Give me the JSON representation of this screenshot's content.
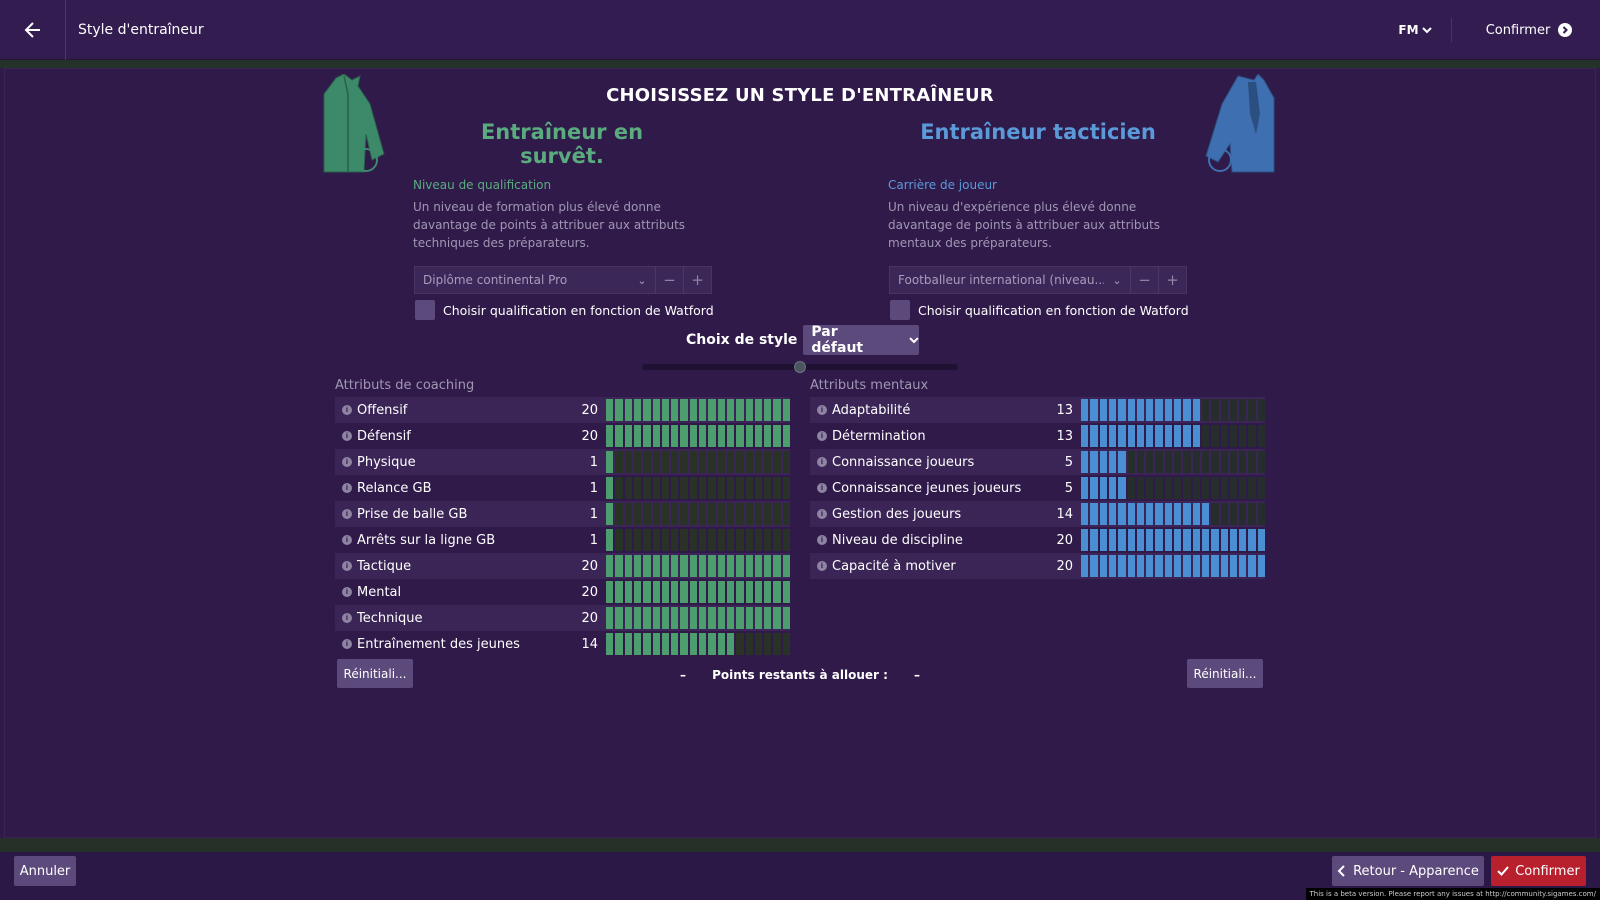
{
  "topbar": {
    "title": "Style d'entraîneur",
    "fm_label": "FM",
    "confirm_label": "Confirmer"
  },
  "heading": "CHOISISSEZ UN STYLE D'ENTRAÎNEUR",
  "left": {
    "style_title": "Entraîneur en survêt.",
    "sub_label": "Niveau de qualification",
    "description": "Un niveau de formation plus élevé donne davantage de points à attribuer aux attributs techniques des préparateurs.",
    "dropdown_value": "Diplôme continental Pro",
    "checkbox_label": "Choisir qualification en fonction de Watford",
    "section_title": "Attributs de coaching",
    "attributes": [
      {
        "name": "Offensif",
        "value": 20
      },
      {
        "name": "Défensif",
        "value": 20
      },
      {
        "name": "Physique",
        "value": 1
      },
      {
        "name": "Relance GB",
        "value": 1
      },
      {
        "name": "Prise de balle GB",
        "value": 1
      },
      {
        "name": "Arrêts sur la ligne GB",
        "value": 1
      },
      {
        "name": "Tactique",
        "value": 20
      },
      {
        "name": "Mental",
        "value": 20
      },
      {
        "name": "Technique",
        "value": 20
      },
      {
        "name": "Entraînement des jeunes",
        "value": 14
      }
    ],
    "reset_label": "Réinitiali..."
  },
  "right": {
    "style_title": "Entraîneur tacticien",
    "sub_label": "Carrière de joueur",
    "description": "Un niveau d'expérience plus élevé donne davantage de points à attribuer aux attributs mentaux des préparateurs.",
    "dropdown_value": "Footballeur international (niveau...",
    "checkbox_label": "Choisir qualification en fonction de Watford",
    "section_title": "Attributs mentaux",
    "attributes": [
      {
        "name": "Adaptabilité",
        "value": 13
      },
      {
        "name": "Détermination",
        "value": 13
      },
      {
        "name": "Connaissance joueurs",
        "value": 5
      },
      {
        "name": "Connaissance jeunes joueurs",
        "value": 5
      },
      {
        "name": "Gestion des joueurs",
        "value": 14
      },
      {
        "name": "Niveau de discipline",
        "value": 20
      },
      {
        "name": "Capacité à motiver",
        "value": 20
      }
    ],
    "reset_label": "Réinitiali..."
  },
  "style_choice": {
    "label": "Choix de style",
    "selected": "Par défaut",
    "slider_position": 0.5
  },
  "points": {
    "left_dash": "–",
    "label": "Points restants à allouer :",
    "right_dash": "–"
  },
  "footer": {
    "cancel_label": "Annuler",
    "back_label": "Retour - Apparence",
    "confirm_label": "Confirmer",
    "beta_note": "This is a beta version. Please report any issues at http://community.sigames.com/"
  },
  "colors": {
    "background": "#2f1a4a",
    "green_accent": "#5aac7e",
    "blue_accent": "#5b9ad8",
    "confirm_red": "#b8202e"
  }
}
